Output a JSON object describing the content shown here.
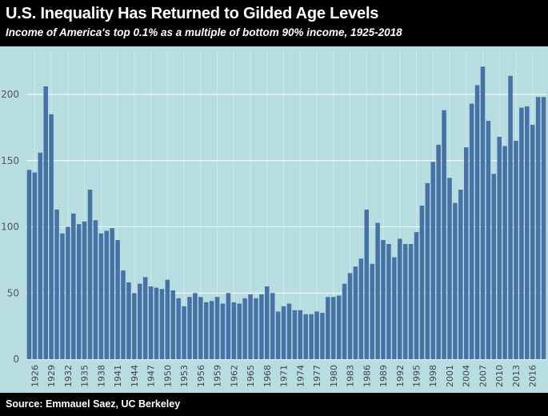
{
  "header": {
    "title": "U.S. Inequality Has Returned to Gilded Age Levels",
    "subtitle": "Income of America's top 0.1% as a multiple of bottom 90% income, 1925-2018"
  },
  "footer": {
    "source": "Source: Emmauel Saez, UC Berkeley"
  },
  "colors": {
    "bar": "#4672a6",
    "plot_background": "#b7dde0",
    "grid": "#ffffff",
    "frame": "#000000"
  },
  "chart_data": {
    "type": "bar",
    "x_start": 1925,
    "x_end": 2018,
    "categories": [
      "1925",
      "1926",
      "1927",
      "1928",
      "1929",
      "1930",
      "1931",
      "1932",
      "1933",
      "1934",
      "1935",
      "1936",
      "1937",
      "1938",
      "1939",
      "1940",
      "1941",
      "1942",
      "1943",
      "1944",
      "1945",
      "1946",
      "1947",
      "1948",
      "1949",
      "1950",
      "1951",
      "1952",
      "1953",
      "1954",
      "1955",
      "1956",
      "1957",
      "1958",
      "1959",
      "1960",
      "1961",
      "1962",
      "1963",
      "1964",
      "1965",
      "1966",
      "1967",
      "1968",
      "1969",
      "1970",
      "1971",
      "1972",
      "1973",
      "1974",
      "1975",
      "1976",
      "1977",
      "1978",
      "1979",
      "1980",
      "1981",
      "1982",
      "1983",
      "1984",
      "1985",
      "1986",
      "1987",
      "1988",
      "1989",
      "1990",
      "1991",
      "1992",
      "1993",
      "1994",
      "1995",
      "1996",
      "1997",
      "1998",
      "1999",
      "2000",
      "2001",
      "2002",
      "2003",
      "2004",
      "2005",
      "2006",
      "2007",
      "2008",
      "2009",
      "2010",
      "2011",
      "2012",
      "2013",
      "2014",
      "2015",
      "2016",
      "2017",
      "2018"
    ],
    "values": [
      143,
      141,
      156,
      206,
      185,
      113,
      95,
      100,
      110,
      102,
      104,
      128,
      105,
      95,
      97,
      99,
      90,
      67,
      58,
      50,
      57,
      62,
      55,
      54,
      53,
      60,
      52,
      46,
      40,
      47,
      50,
      47,
      43,
      44,
      47,
      42,
      50,
      43,
      42,
      46,
      49,
      46,
      49,
      55,
      50,
      36,
      40,
      42,
      37,
      37,
      34,
      34,
      36,
      35,
      47,
      47,
      48,
      57,
      65,
      70,
      76,
      113,
      72,
      103,
      90,
      87,
      77,
      91,
      87,
      87,
      96,
      116,
      133,
      149,
      162,
      188,
      137,
      118,
      128,
      160,
      193,
      207,
      221,
      180,
      140,
      168,
      161,
      214,
      165,
      190,
      191,
      177,
      198,
      198
    ],
    "ylim": [
      0,
      225
    ],
    "yticks": [
      "0",
      "50",
      "100",
      "150",
      "200"
    ],
    "xtick_labels": [
      "1926",
      "1929",
      "1932",
      "1935",
      "1938",
      "1941",
      "1944",
      "1947",
      "1950",
      "1953",
      "1956",
      "1959",
      "1962",
      "1965",
      "1968",
      "1971",
      "1974",
      "1977",
      "1980",
      "1983",
      "1986",
      "1989",
      "1992",
      "1995",
      "1998",
      "2001",
      "2004",
      "2007",
      "2010",
      "2013",
      "2016"
    ],
    "xlabel": "",
    "ylabel": "",
    "grid": true,
    "legend": "none"
  }
}
